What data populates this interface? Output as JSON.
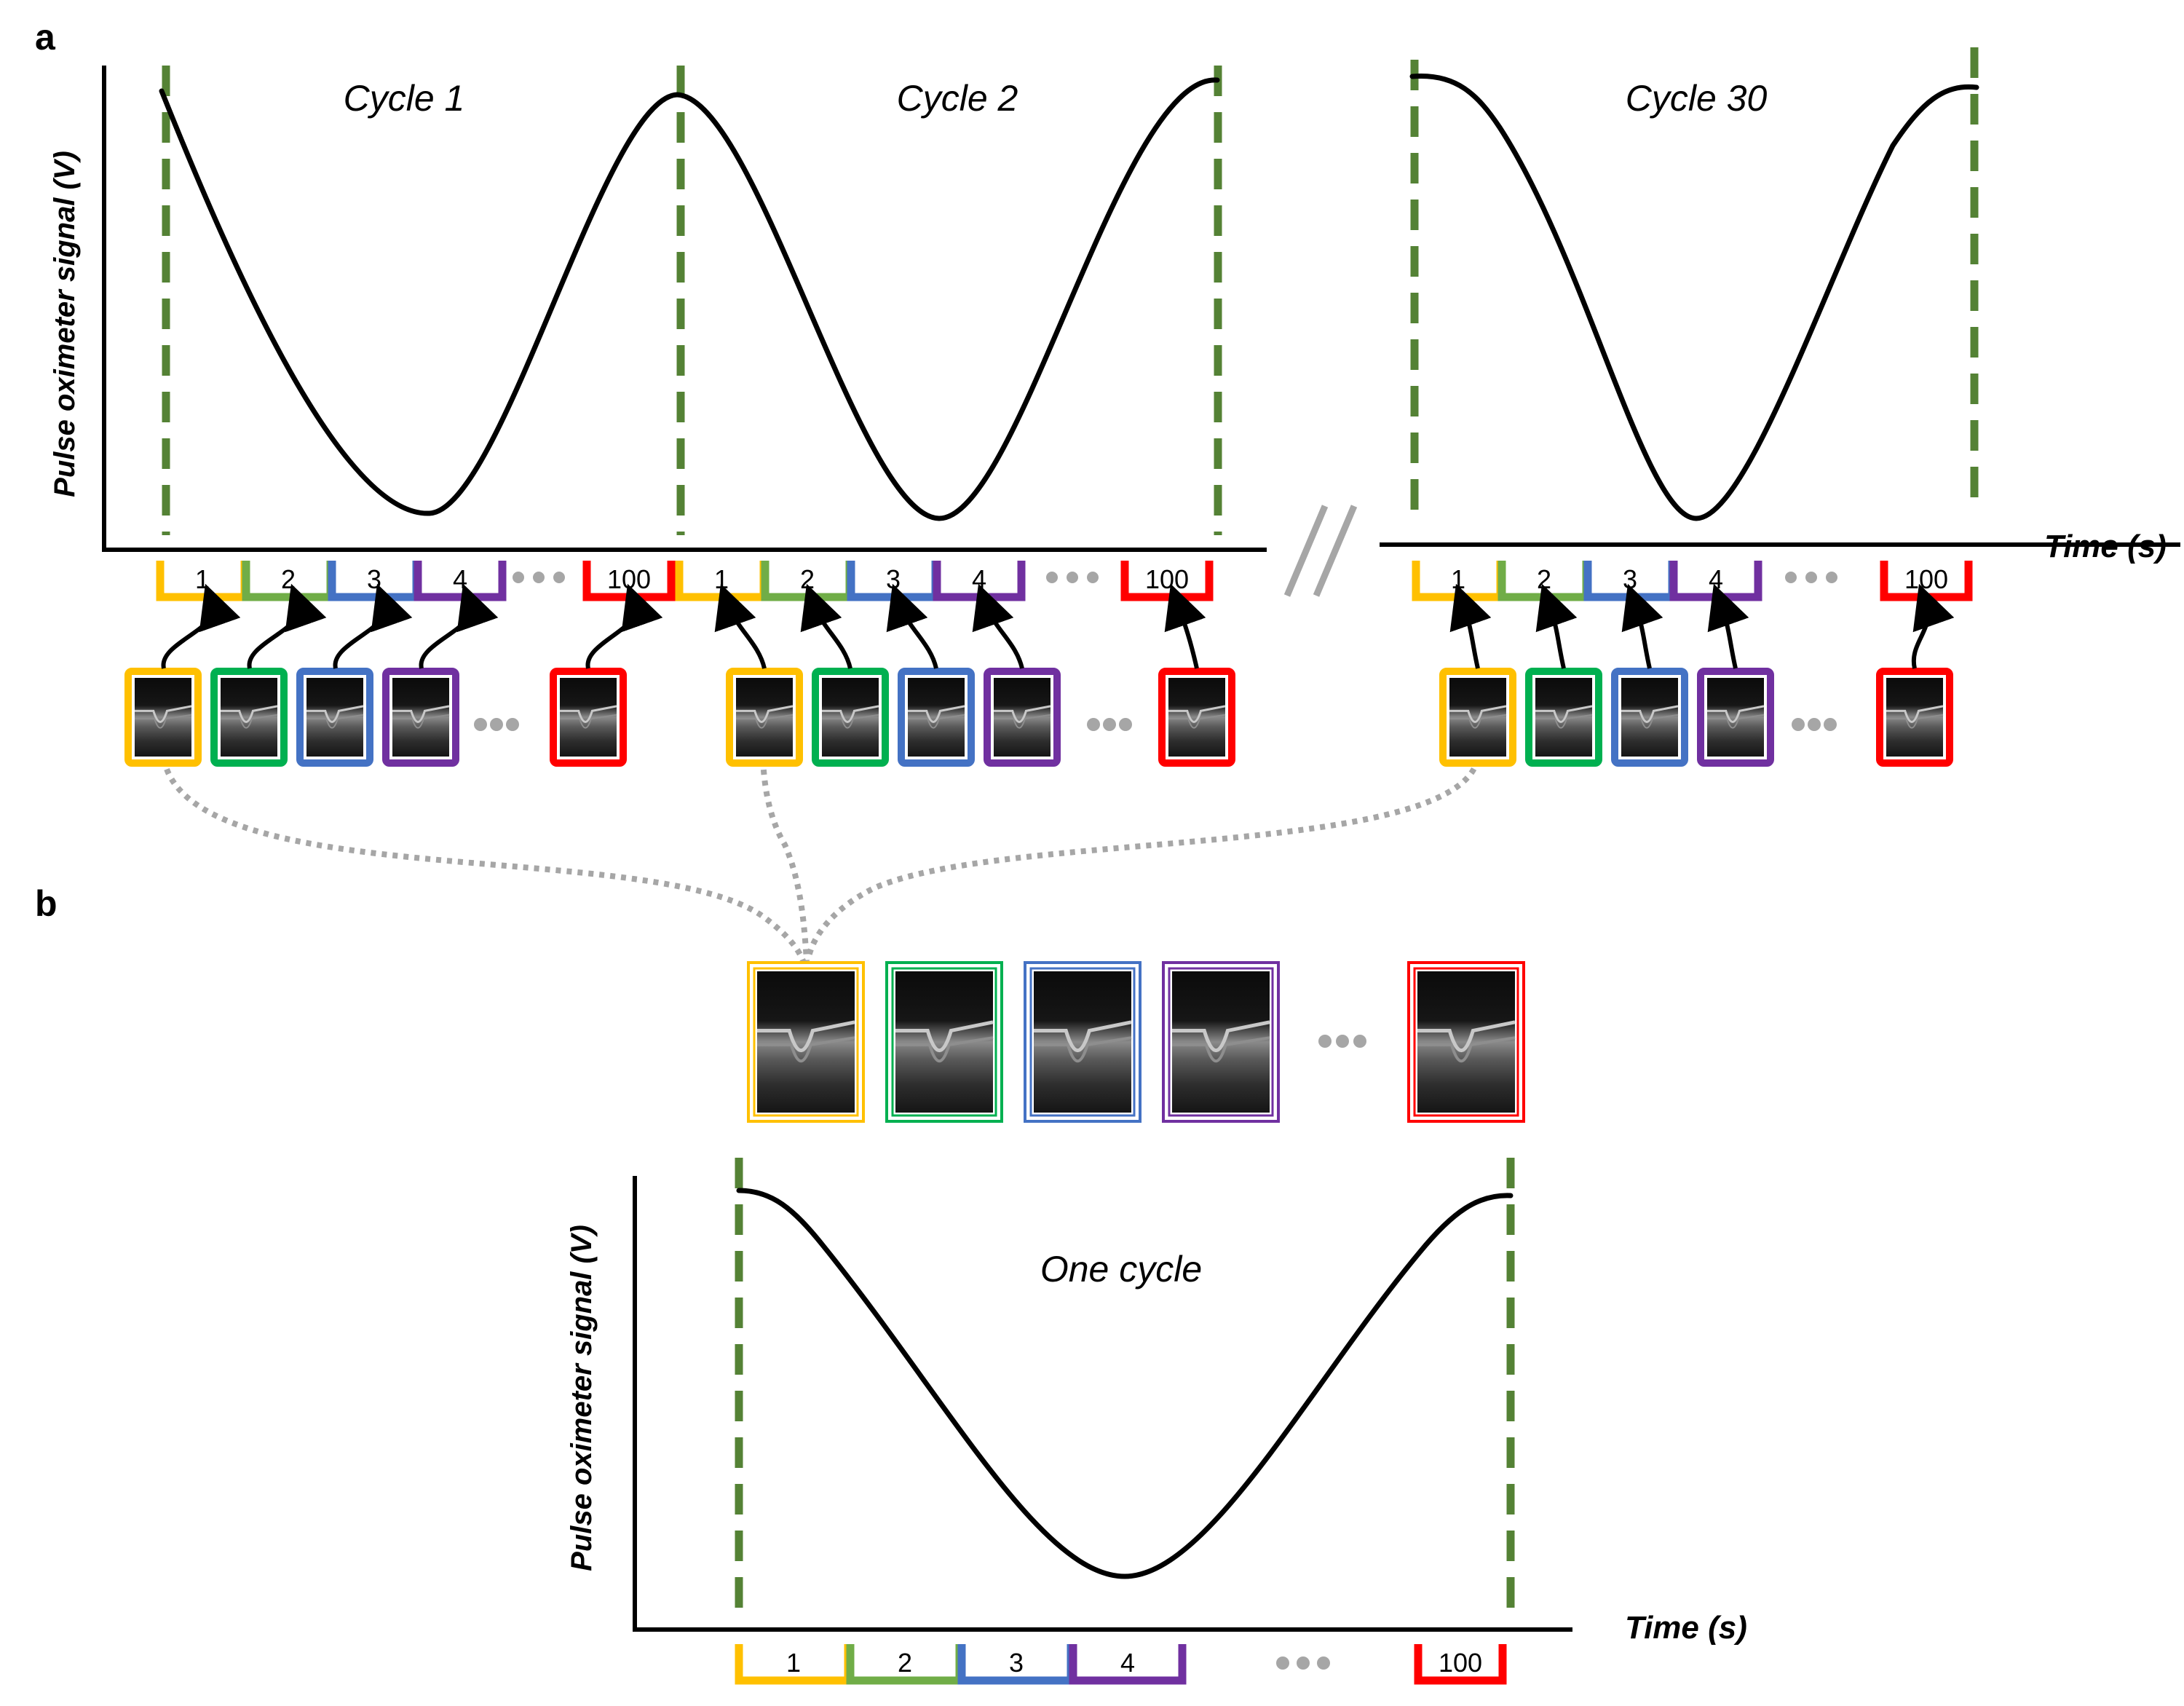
{
  "panels": {
    "a": "a",
    "b": "b"
  },
  "axes": {
    "y_label": "Pulse oximeter signal (V)",
    "x_label": "Time (s)"
  },
  "cycles": {
    "c1": "Cycle 1",
    "c2": "Cycle 2",
    "c30": "Cycle 30",
    "one": "One cycle"
  },
  "bins": {
    "b1": "1",
    "b2": "2",
    "b3": "3",
    "b4": "4",
    "b100": "100"
  },
  "colors": {
    "bin1": "#ffc000",
    "bin2": "#70ad47",
    "bin3": "#4472c4",
    "bin4": "#7030a0",
    "bin100": "#ff0000",
    "frame2": "#00b050",
    "cycle_marker": "#548235",
    "connector": "#a6a6a6"
  },
  "icons": {
    "oct": "oct-bscan-thumbnail-icon",
    "ellipsis": "ellipsis-dots-icon",
    "axis_break": "axis-break-icon"
  }
}
